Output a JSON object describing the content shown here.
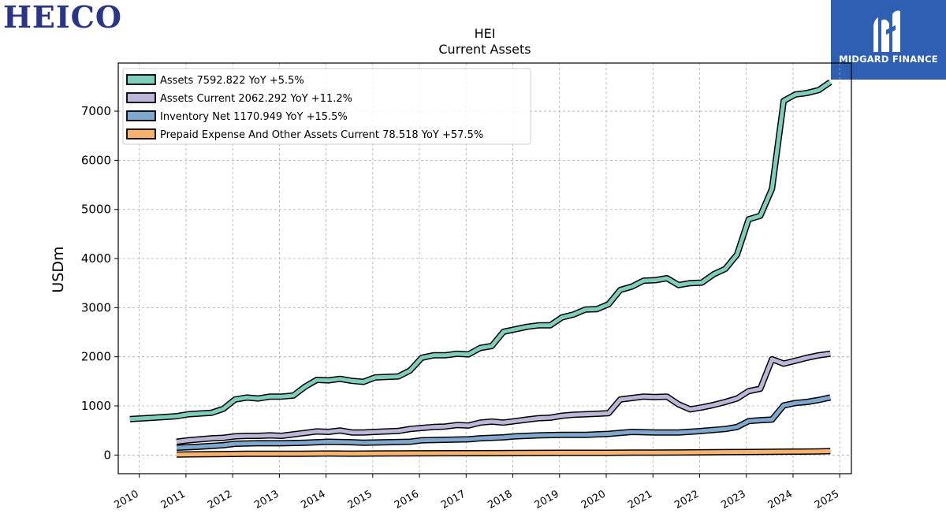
{
  "logos": {
    "left_text": "HEICO",
    "left_color": "#2b3586",
    "right_text": "MIDGARD FINANCE",
    "right_bg": "#2e5fb3",
    "right_icon": "midgard-mark-icon"
  },
  "chart_data": {
    "type": "line",
    "title": "HEI",
    "subtitle": "Current  Assets",
    "ylabel": "USDm",
    "xlabel": "",
    "xlim": [
      2009.55,
      2025.25
    ],
    "ylim": [
      -380,
      7980
    ],
    "yticks": [
      0,
      1000,
      2000,
      3000,
      4000,
      5000,
      6000,
      7000
    ],
    "ytick_labels": [
      "0",
      "1000",
      "2000",
      "3000",
      "4000",
      "5000",
      "6000",
      "7000"
    ],
    "xticks": [
      2010,
      2011,
      2012,
      2013,
      2014,
      2015,
      2016,
      2017,
      2018,
      2019,
      2020,
      2021,
      2022,
      2023,
      2024,
      2025
    ],
    "xtick_labels": [
      "2010",
      "2011",
      "2012",
      "2013",
      "2014",
      "2015",
      "2016",
      "2017",
      "2018",
      "2019",
      "2020",
      "2021",
      "2022",
      "2023",
      "2024",
      "2025"
    ],
    "grid": true,
    "legend_position": "top-left",
    "series": [
      {
        "name": "Assets",
        "legend_label": "Assets  7592.822 YoY +5.5%",
        "color": "#7fcdbb",
        "points": [
          [
            2009.8,
            730
          ],
          [
            2010.3,
            760
          ],
          [
            2010.8,
            790
          ],
          [
            2011.05,
            830
          ],
          [
            2011.55,
            860
          ],
          [
            2011.8,
            940
          ],
          [
            2012.05,
            1130
          ],
          [
            2012.3,
            1170
          ],
          [
            2012.55,
            1150
          ],
          [
            2012.8,
            1190
          ],
          [
            2013.05,
            1190
          ],
          [
            2013.3,
            1210
          ],
          [
            2013.55,
            1390
          ],
          [
            2013.8,
            1530
          ],
          [
            2014.05,
            1520
          ],
          [
            2014.3,
            1550
          ],
          [
            2014.55,
            1510
          ],
          [
            2014.8,
            1490
          ],
          [
            2015.05,
            1580
          ],
          [
            2015.55,
            1600
          ],
          [
            2015.8,
            1720
          ],
          [
            2016.05,
            1980
          ],
          [
            2016.3,
            2030
          ],
          [
            2016.55,
            2030
          ],
          [
            2016.8,
            2060
          ],
          [
            2017.05,
            2050
          ],
          [
            2017.3,
            2180
          ],
          [
            2017.55,
            2220
          ],
          [
            2017.8,
            2510
          ],
          [
            2018.05,
            2560
          ],
          [
            2018.3,
            2610
          ],
          [
            2018.55,
            2640
          ],
          [
            2018.8,
            2640
          ],
          [
            2019.05,
            2800
          ],
          [
            2019.3,
            2860
          ],
          [
            2019.55,
            2960
          ],
          [
            2019.8,
            2970
          ],
          [
            2020.05,
            3070
          ],
          [
            2020.3,
            3360
          ],
          [
            2020.55,
            3430
          ],
          [
            2020.8,
            3550
          ],
          [
            2021.05,
            3560
          ],
          [
            2021.3,
            3600
          ],
          [
            2021.55,
            3460
          ],
          [
            2021.8,
            3500
          ],
          [
            2022.05,
            3510
          ],
          [
            2022.3,
            3680
          ],
          [
            2022.55,
            3790
          ],
          [
            2022.8,
            4080
          ],
          [
            2023.05,
            4800
          ],
          [
            2023.3,
            4870
          ],
          [
            2023.55,
            5420
          ],
          [
            2023.8,
            7210
          ],
          [
            2024.05,
            7340
          ],
          [
            2024.3,
            7370
          ],
          [
            2024.55,
            7430
          ],
          [
            2024.8,
            7592
          ]
        ]
      },
      {
        "name": "Assets Current",
        "legend_label": "Assets Current  2062.292 YoY +11.2%",
        "color": "#bcb6d8",
        "points": [
          [
            2010.8,
            270
          ],
          [
            2011.05,
            300
          ],
          [
            2011.3,
            320
          ],
          [
            2011.55,
            340
          ],
          [
            2011.8,
            350
          ],
          [
            2012.05,
            380
          ],
          [
            2012.3,
            390
          ],
          [
            2012.55,
            390
          ],
          [
            2012.8,
            400
          ],
          [
            2013.05,
            390
          ],
          [
            2013.3,
            420
          ],
          [
            2013.55,
            450
          ],
          [
            2013.8,
            480
          ],
          [
            2014.05,
            470
          ],
          [
            2014.3,
            500
          ],
          [
            2014.55,
            460
          ],
          [
            2014.8,
            460
          ],
          [
            2015.05,
            470
          ],
          [
            2015.3,
            480
          ],
          [
            2015.55,
            490
          ],
          [
            2015.8,
            530
          ],
          [
            2016.05,
            550
          ],
          [
            2016.3,
            570
          ],
          [
            2016.55,
            580
          ],
          [
            2016.8,
            610
          ],
          [
            2017.05,
            600
          ],
          [
            2017.3,
            660
          ],
          [
            2017.55,
            680
          ],
          [
            2017.8,
            660
          ],
          [
            2018.05,
            690
          ],
          [
            2018.3,
            720
          ],
          [
            2018.55,
            750
          ],
          [
            2018.8,
            760
          ],
          [
            2019.05,
            800
          ],
          [
            2019.3,
            820
          ],
          [
            2019.55,
            830
          ],
          [
            2019.8,
            840
          ],
          [
            2020.05,
            850
          ],
          [
            2020.3,
            1130
          ],
          [
            2020.55,
            1160
          ],
          [
            2020.8,
            1190
          ],
          [
            2021.05,
            1180
          ],
          [
            2021.3,
            1190
          ],
          [
            2021.55,
            1030
          ],
          [
            2021.8,
            930
          ],
          [
            2022.05,
            970
          ],
          [
            2022.3,
            1020
          ],
          [
            2022.55,
            1080
          ],
          [
            2022.8,
            1150
          ],
          [
            2023.05,
            1300
          ],
          [
            2023.3,
            1350
          ],
          [
            2023.55,
            1950
          ],
          [
            2023.8,
            1860
          ],
          [
            2024.05,
            1920
          ],
          [
            2024.3,
            1980
          ],
          [
            2024.55,
            2030
          ],
          [
            2024.8,
            2062
          ]
        ]
      },
      {
        "name": "Inventory Net",
        "legend_label": "Inventory Net  1170.949 YoY +15.5%",
        "color": "#80a8cf",
        "points": [
          [
            2010.8,
            150
          ],
          [
            2011.3,
            170
          ],
          [
            2011.8,
            200
          ],
          [
            2012.05,
            230
          ],
          [
            2012.55,
            240
          ],
          [
            2013.05,
            240
          ],
          [
            2013.55,
            250
          ],
          [
            2014.05,
            270
          ],
          [
            2014.55,
            260
          ],
          [
            2014.8,
            250
          ],
          [
            2015.3,
            260
          ],
          [
            2015.8,
            270
          ],
          [
            2016.05,
            300
          ],
          [
            2016.55,
            310
          ],
          [
            2017.05,
            320
          ],
          [
            2017.3,
            340
          ],
          [
            2017.55,
            350
          ],
          [
            2017.8,
            360
          ],
          [
            2018.05,
            380
          ],
          [
            2018.55,
            400
          ],
          [
            2019.05,
            410
          ],
          [
            2019.55,
            410
          ],
          [
            2020.05,
            430
          ],
          [
            2020.55,
            470
          ],
          [
            2021.05,
            460
          ],
          [
            2021.55,
            460
          ],
          [
            2022.05,
            490
          ],
          [
            2022.55,
            530
          ],
          [
            2022.8,
            570
          ],
          [
            2023.05,
            690
          ],
          [
            2023.3,
            710
          ],
          [
            2023.55,
            720
          ],
          [
            2023.8,
            1010
          ],
          [
            2024.05,
            1060
          ],
          [
            2024.3,
            1080
          ],
          [
            2024.55,
            1120
          ],
          [
            2024.8,
            1171
          ]
        ]
      },
      {
        "name": "Prepaid Expense And Other Assets Current",
        "legend_label": "Prepaid Expense And Other Assets Current  78.518 YoY +57.5%",
        "color": "#f7b26e",
        "points": [
          [
            2010.8,
            10
          ],
          [
            2011.3,
            15
          ],
          [
            2011.8,
            20
          ],
          [
            2012.3,
            25
          ],
          [
            2013.3,
            25
          ],
          [
            2014.05,
            30
          ],
          [
            2014.55,
            28
          ],
          [
            2015.05,
            30
          ],
          [
            2016.05,
            35
          ],
          [
            2017.05,
            38
          ],
          [
            2018.05,
            40
          ],
          [
            2019.05,
            45
          ],
          [
            2020.05,
            45
          ],
          [
            2020.55,
            50
          ],
          [
            2021.05,
            48
          ],
          [
            2021.55,
            52
          ],
          [
            2022.05,
            55
          ],
          [
            2022.55,
            60
          ],
          [
            2023.05,
            62
          ],
          [
            2023.55,
            65
          ],
          [
            2024.05,
            70
          ],
          [
            2024.55,
            72
          ],
          [
            2024.8,
            78.5
          ]
        ]
      }
    ]
  }
}
